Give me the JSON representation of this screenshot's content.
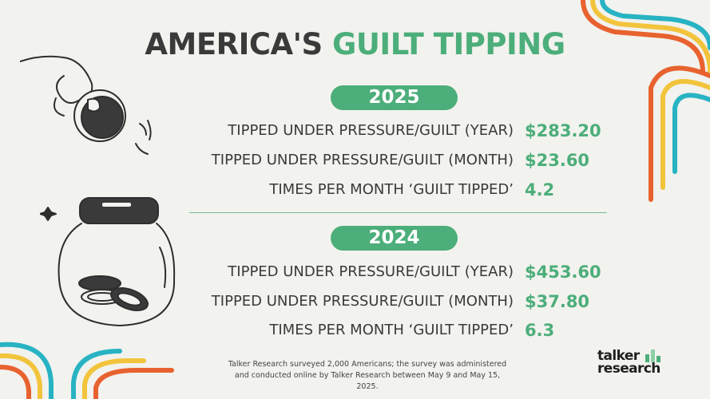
{
  "title": {
    "part1": "AMERICA'S",
    "part2": "GUILT TIPPING"
  },
  "sections": [
    {
      "year": "2025",
      "rows": [
        {
          "label": "TIPPED UNDER PRESSURE/GUILT (YEAR)",
          "value": "$283.20"
        },
        {
          "label": "TIPPED UNDER PRESSURE/GUILT (MONTH)",
          "value": "$23.60"
        },
        {
          "label": "TIMES PER MONTH ‘GUILT TIPPED’",
          "value": "4.2"
        }
      ]
    },
    {
      "year": "2024",
      "rows": [
        {
          "label": "TIPPED UNDER PRESSURE/GUILT (YEAR)",
          "value": "$453.60"
        },
        {
          "label": "TIPPED UNDER PRESSURE/GUILT (MONTH)",
          "value": "$37.80"
        },
        {
          "label": "TIMES PER MONTH ‘GUILT TIPPED’",
          "value": "6.3"
        }
      ]
    }
  ],
  "footer": {
    "line1": "Talker Research surveyed 2,000 Americans; the survey was administered",
    "line2": "and conducted online by Talker Research between May 9 and May 15, 2025."
  },
  "logo": {
    "line1": "talker",
    "line2": "research"
  },
  "colors": {
    "background": "#f2f2ee",
    "text": "#3a3a3a",
    "accent": "#4cae7a",
    "stripe_orange": "#e8622f",
    "stripe_yellow": "#f2c43c",
    "stripe_teal": "#28b3c3"
  }
}
